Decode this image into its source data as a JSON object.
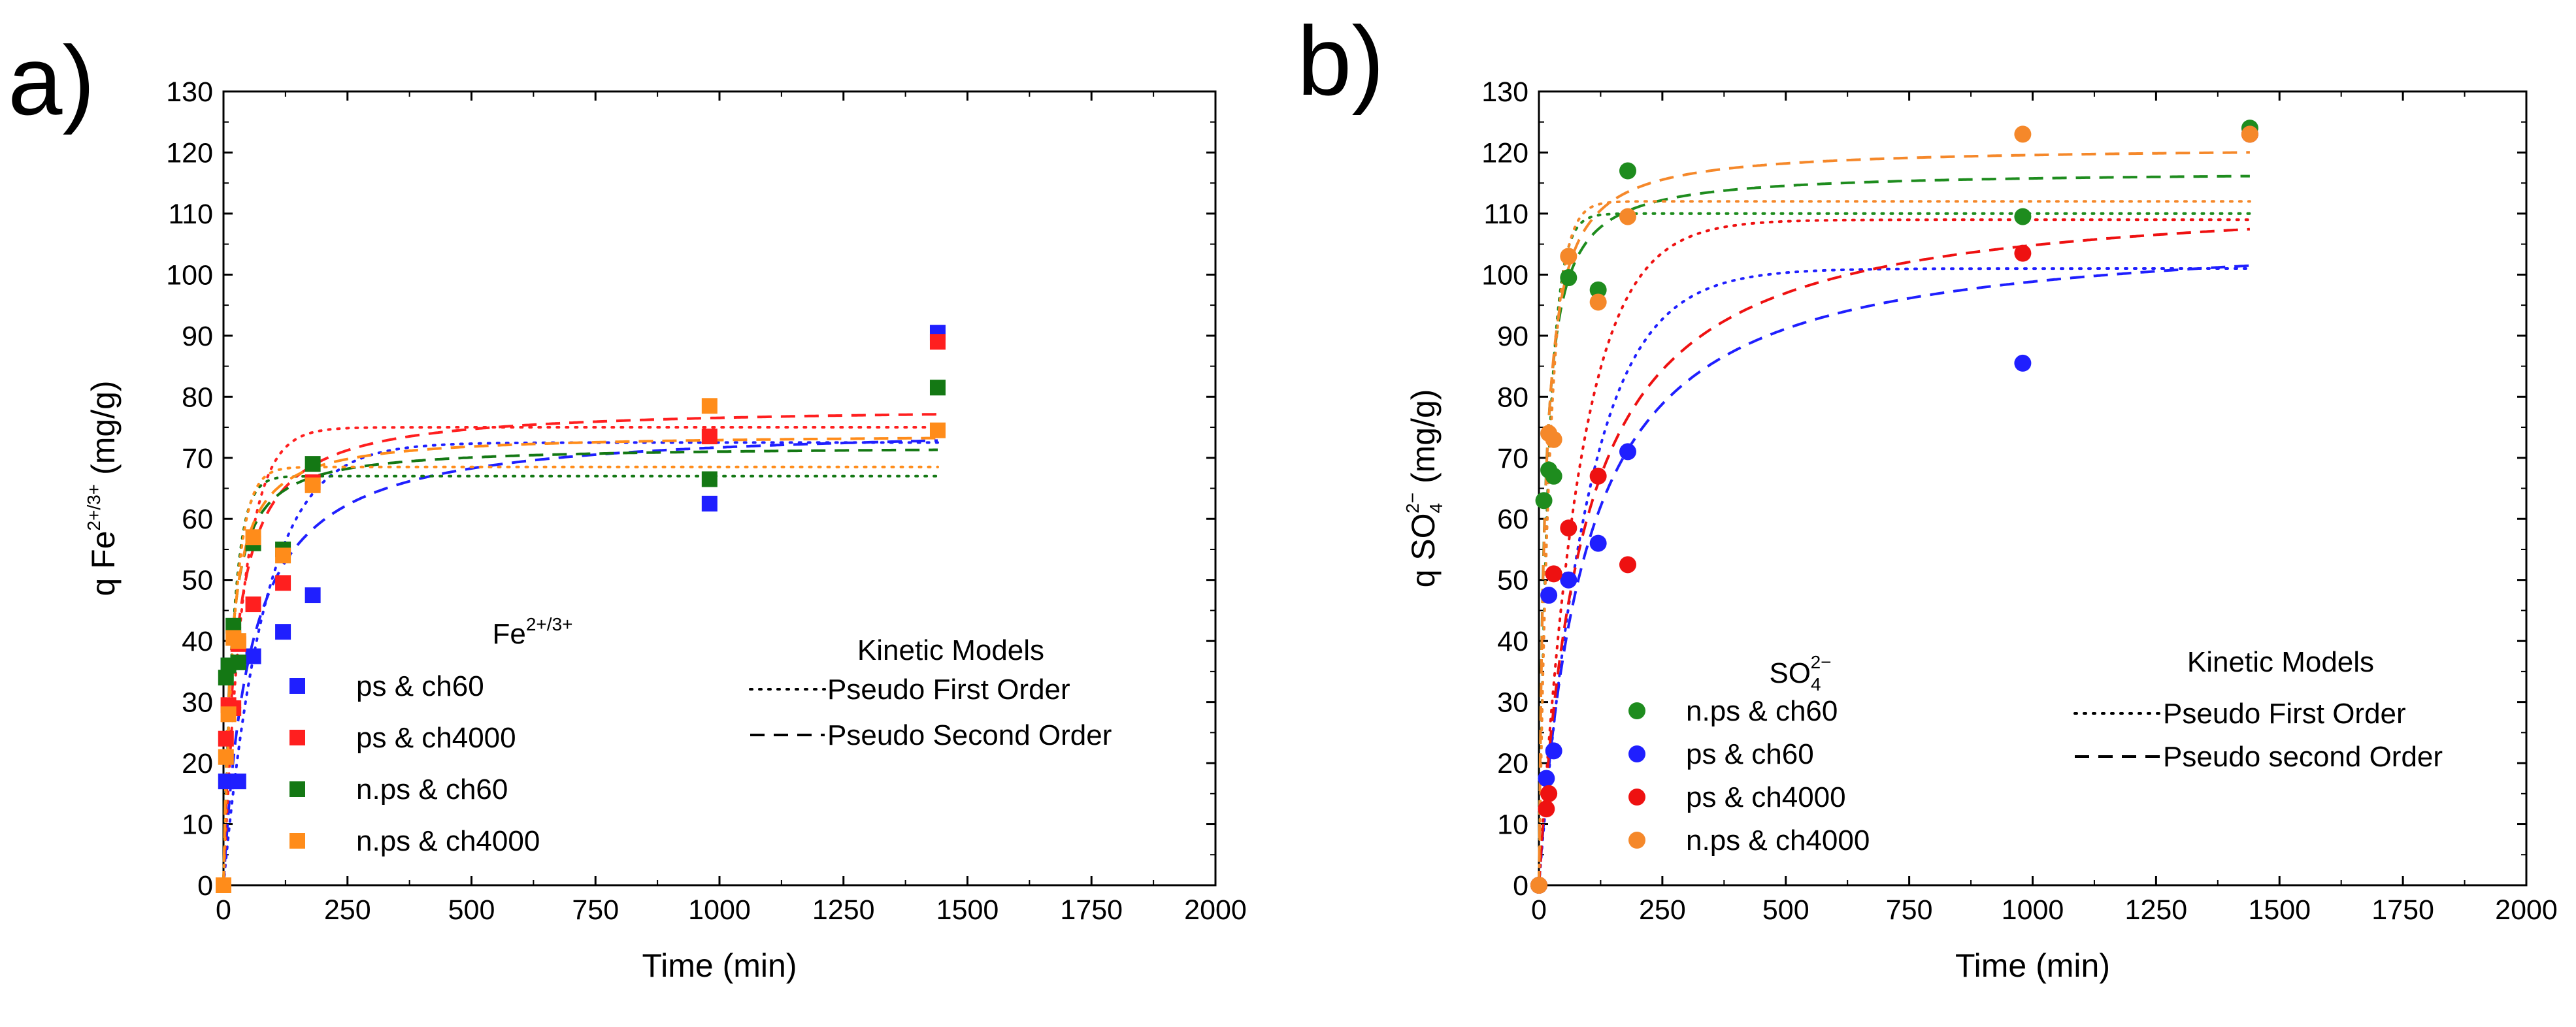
{
  "chart_data": [
    {
      "type": "scatter",
      "panel_label": "a)",
      "xlabel": "Time (min)",
      "ylabel": {
        "prefix": "q Fe",
        "sup": "2+/3+",
        "suffix": " (mg/g)"
      },
      "xlim": [
        0,
        2000
      ],
      "ylim": [
        0,
        130
      ],
      "x_ticks": [
        0,
        250,
        500,
        750,
        1000,
        1250,
        1500,
        1750,
        2000
      ],
      "y_ticks": [
        0,
        10,
        20,
        30,
        40,
        50,
        60,
        70,
        80,
        90,
        100,
        110,
        120,
        130
      ],
      "data_legend_title": {
        "base": "Fe",
        "sup": "2+/3+"
      },
      "model_legend_title": "Kinetic Models",
      "model_legend": [
        {
          "label": "Pseudo First Order",
          "style": "dotted"
        },
        {
          "label": "Pseudo Second Order",
          "style": "dashed"
        }
      ],
      "series": [
        {
          "name": "ps & ch60",
          "color": "#1f1fff",
          "marker": "square",
          "points": [
            [
              0,
              0
            ],
            [
              5,
              17
            ],
            [
              10,
              36
            ],
            [
              15,
              29
            ],
            [
              30,
              17
            ],
            [
              60,
              37.5
            ],
            [
              120,
              41.5
            ],
            [
              180,
              47.5
            ],
            [
              980,
              62.5
            ],
            [
              1440,
              90.5
            ]
          ],
          "pfo": {
            "qe": 72.5,
            "k": 0.012
          },
          "pso": {
            "qe": 75.5,
            "k": 0.00025
          }
        },
        {
          "name": "ps & ch4000",
          "color": "#ff1f1f",
          "marker": "square",
          "points": [
            [
              0,
              0
            ],
            [
              5,
              24
            ],
            [
              10,
              29.5
            ],
            [
              20,
              29
            ],
            [
              30,
              39.5
            ],
            [
              60,
              46
            ],
            [
              120,
              49.5
            ],
            [
              180,
              66
            ],
            [
              980,
              73.5
            ],
            [
              1440,
              89
            ]
          ],
          "pfo": {
            "qe": 75,
            "k": 0.025
          },
          "pso": {
            "qe": 78.5,
            "k": 0.0005
          }
        },
        {
          "name": "n.ps & ch60",
          "color": "#147814",
          "marker": "square",
          "points": [
            [
              0,
              0
            ],
            [
              5,
              34
            ],
            [
              10,
              36
            ],
            [
              20,
              42.5
            ],
            [
              30,
              36.5
            ],
            [
              60,
              56
            ],
            [
              120,
              55
            ],
            [
              180,
              69
            ],
            [
              980,
              66.5
            ],
            [
              1440,
              81.5
            ]
          ],
          "pfo": {
            "qe": 67,
            "k": 0.05
          },
          "pso": {
            "qe": 72,
            "k": 0.001
          }
        },
        {
          "name": "n.ps & ch4000",
          "color": "#ff8c1a",
          "marker": "square",
          "points": [
            [
              0,
              0
            ],
            [
              5,
              21
            ],
            [
              10,
              28
            ],
            [
              20,
              40.5
            ],
            [
              30,
              40
            ],
            [
              60,
              57
            ],
            [
              120,
              54
            ],
            [
              180,
              65.5
            ],
            [
              980,
              78.5
            ],
            [
              1440,
              74.5
            ]
          ],
          "pfo": {
            "qe": 68.5,
            "k": 0.045
          },
          "pso": {
            "qe": 74,
            "k": 0.0009
          }
        }
      ]
    },
    {
      "type": "scatter",
      "panel_label": "b)",
      "xlabel": "Time (min)",
      "ylabel": {
        "prefix": "q SO",
        "sub": "4",
        "sup": "2−",
        "suffix": " (mg/g)"
      },
      "xlim": [
        0,
        2000
      ],
      "ylim": [
        0,
        130
      ],
      "x_ticks": [
        0,
        250,
        500,
        750,
        1000,
        1250,
        1500,
        1750,
        2000
      ],
      "y_ticks": [
        0,
        10,
        20,
        30,
        40,
        50,
        60,
        70,
        80,
        90,
        100,
        110,
        120,
        130
      ],
      "data_legend_title": {
        "base": "SO",
        "sub": "4",
        "sup": "2−"
      },
      "model_legend_title": "Kinetic Models",
      "model_legend": [
        {
          "label": "Pseudo First Order",
          "style": "dotted"
        },
        {
          "label": "Pseudo second Order",
          "style": "dashed"
        }
      ],
      "series": [
        {
          "name": "n.ps & ch60",
          "color": "#1e8c1e",
          "marker": "circle",
          "points": [
            [
              0,
              0
            ],
            [
              10,
              63
            ],
            [
              20,
              68
            ],
            [
              30,
              67
            ],
            [
              60,
              99.5
            ],
            [
              120,
              97.5
            ],
            [
              180,
              117
            ],
            [
              980,
              109.5
            ],
            [
              1440,
              124
            ]
          ],
          "pfo": {
            "qe": 110,
            "k": 0.05
          },
          "pso": {
            "qe": 117,
            "k": 0.0008
          }
        },
        {
          "name": "ps & ch60",
          "color": "#1f1fff",
          "marker": "circle",
          "points": [
            [
              0,
              0
            ],
            [
              15,
              17.5
            ],
            [
              20,
              47.5
            ],
            [
              30,
              22
            ],
            [
              60,
              50
            ],
            [
              120,
              56
            ],
            [
              180,
              71
            ],
            [
              980,
              85.5
            ],
            [
              1440,
              123
            ]
          ],
          "pfo": {
            "qe": 101,
            "k": 0.01
          },
          "pso": {
            "qe": 108,
            "k": 0.0001
          }
        },
        {
          "name": "ps & ch4000",
          "color": "#ee1111",
          "marker": "circle",
          "points": [
            [
              0,
              0
            ],
            [
              15,
              12.5
            ],
            [
              20,
              15
            ],
            [
              30,
              51
            ],
            [
              60,
              58.5
            ],
            [
              120,
              67
            ],
            [
              180,
              52.5
            ],
            [
              980,
              103.5
            ],
            [
              1440,
              123
            ]
          ],
          "pfo": {
            "qe": 109,
            "k": 0.012
          },
          "pso": {
            "qe": 114,
            "k": 0.0001
          }
        },
        {
          "name": "n.ps & ch4000",
          "color": "#f5882a",
          "marker": "circle",
          "points": [
            [
              0,
              0
            ],
            [
              20,
              74
            ],
            [
              30,
              73
            ],
            [
              60,
              103
            ],
            [
              120,
              95.5
            ],
            [
              180,
              109.5
            ],
            [
              980,
              123
            ],
            [
              1440,
              123
            ]
          ],
          "pfo": {
            "qe": 112,
            "k": 0.045
          },
          "pso": {
            "qe": 121,
            "k": 0.0007
          }
        }
      ]
    }
  ]
}
